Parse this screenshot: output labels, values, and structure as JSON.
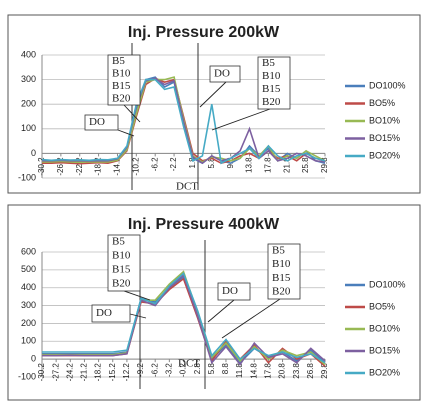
{
  "chart_data": [
    {
      "type": "line",
      "title": "Inj. Pressure 200kW",
      "x": [
        -30.2,
        -28.2,
        -26.2,
        -24.2,
        -22.2,
        -20.2,
        -18.2,
        -16.2,
        -14.2,
        -12.2,
        -10.2,
        -8.2,
        -6.2,
        -4.2,
        -2.2,
        -0.2,
        1.8,
        3.8,
        5.8,
        7.8,
        9.8,
        11.8,
        13.8,
        15.8,
        17.8,
        19.8,
        21.8,
        23.8,
        25.8,
        27.8,
        29.8
      ],
      "xlim": [
        -30.2,
        29.8
      ],
      "xticks": [
        -30.2,
        -26.2,
        -22.2,
        -18.2,
        -14.2,
        -10.2,
        -6.2,
        -2.2,
        1.8,
        5.8,
        9.8,
        13.8,
        17.8,
        21.8,
        25.8,
        29.8
      ],
      "ylim": [
        -100,
        400
      ],
      "yticks": [
        -100,
        0,
        100,
        200,
        300,
        400
      ],
      "grid": true,
      "series": [
        {
          "name": "DO100%",
          "color": "#4a7ebb",
          "values": [
            -30,
            -32,
            -30,
            -28,
            -30,
            -32,
            -30,
            -30,
            -25,
            20,
            180,
            300,
            310,
            270,
            290,
            120,
            -20,
            -40,
            -10,
            -30,
            -40,
            -20,
            30,
            -10,
            20,
            -30,
            0,
            -20,
            10,
            -30,
            -40
          ]
        },
        {
          "name": "BO5%",
          "color": "#be4b48",
          "values": [
            -40,
            -40,
            -38,
            -40,
            -42,
            -40,
            -38,
            -40,
            -30,
            10,
            150,
            280,
            305,
            290,
            300,
            150,
            0,
            -30,
            -20,
            -40,
            -30,
            -10,
            0,
            -20,
            10,
            -20,
            -10,
            -30,
            0,
            -20,
            -30
          ]
        },
        {
          "name": "BO10%",
          "color": "#98b954",
          "values": [
            -35,
            -35,
            -33,
            -35,
            -36,
            -34,
            -35,
            -35,
            -28,
            15,
            160,
            290,
            300,
            300,
            310,
            140,
            -10,
            -35,
            -15,
            -20,
            -30,
            -20,
            20,
            -10,
            30,
            -30,
            -10,
            -20,
            10,
            -10,
            -30
          ]
        },
        {
          "name": "BO15%",
          "color": "#7d60a0",
          "values": [
            -30,
            -30,
            -28,
            -30,
            -30,
            -31,
            -30,
            -30,
            -22,
            25,
            190,
            295,
            305,
            280,
            295,
            130,
            -15,
            -40,
            -10,
            -30,
            -20,
            10,
            100,
            -20,
            10,
            -30,
            -20,
            0,
            -10,
            -30,
            -35
          ]
        },
        {
          "name": "BO20%",
          "color": "#46aac5",
          "values": [
            -25,
            -28,
            -25,
            -27,
            -26,
            -28,
            -25,
            -26,
            -20,
            30,
            200,
            300,
            300,
            260,
            270,
            110,
            -30,
            -10,
            200,
            -40,
            -20,
            0,
            20,
            -20,
            30,
            -10,
            -30,
            -10,
            0,
            -20,
            -30
          ]
        }
      ],
      "annotations": [
        [
          "B5",
          "B10",
          "B15",
          "B20"
        ],
        [
          "DO"
        ],
        [
          "DO"
        ],
        [
          "B5",
          "B10",
          "B15",
          "B20"
        ],
        [
          "DCT"
        ]
      ]
    },
    {
      "type": "line",
      "title": "Inj. Pressure 400kW",
      "x": [
        -30.2,
        -27.2,
        -24.2,
        -21.2,
        -18.2,
        -15.2,
        -12.2,
        -9.2,
        -6.2,
        -3.2,
        -0.2,
        2.8,
        5.8,
        8.8,
        11.8,
        14.8,
        17.8,
        20.8,
        23.8,
        26.8,
        29.8
      ],
      "xlim": [
        -30.2,
        29.8
      ],
      "xticks": [
        -30.2,
        -27.2,
        -24.2,
        -21.2,
        -18.2,
        -15.2,
        -12.2,
        -9.2,
        -6.2,
        -3.2,
        -0.2,
        2.8,
        5.8,
        8.8,
        11.8,
        14.8,
        17.8,
        20.8,
        23.8,
        26.8,
        29.8
      ],
      "ylim": [
        -100,
        600
      ],
      "yticks": [
        -100,
        0,
        100,
        200,
        300,
        400,
        500,
        600
      ],
      "grid": true,
      "series": [
        {
          "name": "DO100%",
          "color": "#4a7ebb",
          "values": [
            30,
            30,
            30,
            30,
            30,
            30,
            40,
            340,
            320,
            400,
            460,
            250,
            0,
            80,
            -20,
            60,
            10,
            40,
            -10,
            50,
            -20
          ]
        },
        {
          "name": "BO5%",
          "color": "#be4b48",
          "values": [
            20,
            20,
            20,
            20,
            20,
            20,
            30,
            320,
            310,
            390,
            450,
            230,
            -10,
            100,
            0,
            80,
            -20,
            60,
            0,
            30,
            -40
          ]
        },
        {
          "name": "BO10%",
          "color": "#98b954",
          "values": [
            25,
            25,
            25,
            25,
            25,
            25,
            35,
            330,
            330,
            420,
            490,
            260,
            10,
            90,
            -10,
            70,
            0,
            50,
            20,
            40,
            -30
          ]
        },
        {
          "name": "BO15%",
          "color": "#7d60a0",
          "values": [
            20,
            20,
            22,
            20,
            20,
            20,
            30,
            330,
            300,
            400,
            470,
            240,
            -20,
            70,
            -30,
            90,
            10,
            30,
            -20,
            60,
            -10
          ]
        },
        {
          "name": "BO20%",
          "color": "#46aac5",
          "values": [
            40,
            40,
            40,
            40,
            40,
            40,
            50,
            340,
            310,
            410,
            480,
            270,
            20,
            110,
            0,
            60,
            20,
            40,
            10,
            30,
            -20
          ]
        }
      ],
      "annotations": [
        [
          "B5",
          "B10",
          "B15",
          "B20"
        ],
        [
          "DO"
        ],
        [
          "DO"
        ],
        [
          "B5",
          "B10",
          "B15",
          "B20"
        ],
        [
          "DCT"
        ]
      ]
    }
  ]
}
